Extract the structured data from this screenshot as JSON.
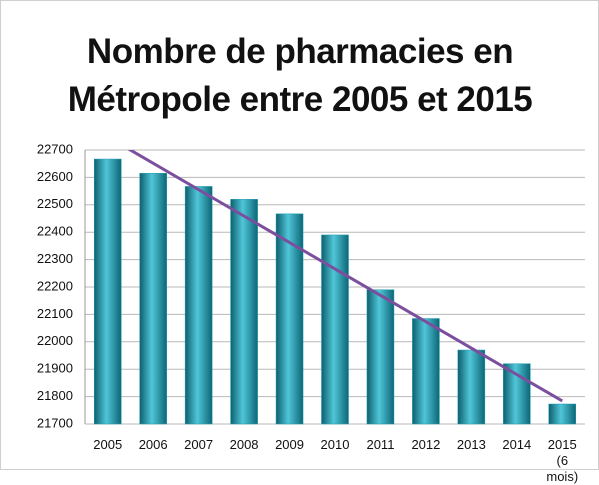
{
  "chart_data": {
    "type": "bar",
    "title": "Nombre de pharmacies en Métropole entre 2005 et 2015",
    "categories": [
      "2005",
      "2006",
      "2007",
      "2008",
      "2009",
      "2010",
      "2011",
      "2012",
      "2013",
      "2014",
      "2015 (6 mois)"
    ],
    "values": [
      22667,
      22615,
      22567,
      22520,
      22467,
      22390,
      22190,
      22085,
      21970,
      21920,
      21773
    ],
    "color": "#1b9db3",
    "ylim": [
      21700,
      22700
    ],
    "yticks": [
      21700,
      21800,
      21900,
      22000,
      22100,
      22200,
      22300,
      22400,
      22500,
      22600,
      22700
    ],
    "grid": true,
    "trendline": {
      "color": "#7b4f9e",
      "values": [
        22748,
        21784
      ]
    }
  }
}
